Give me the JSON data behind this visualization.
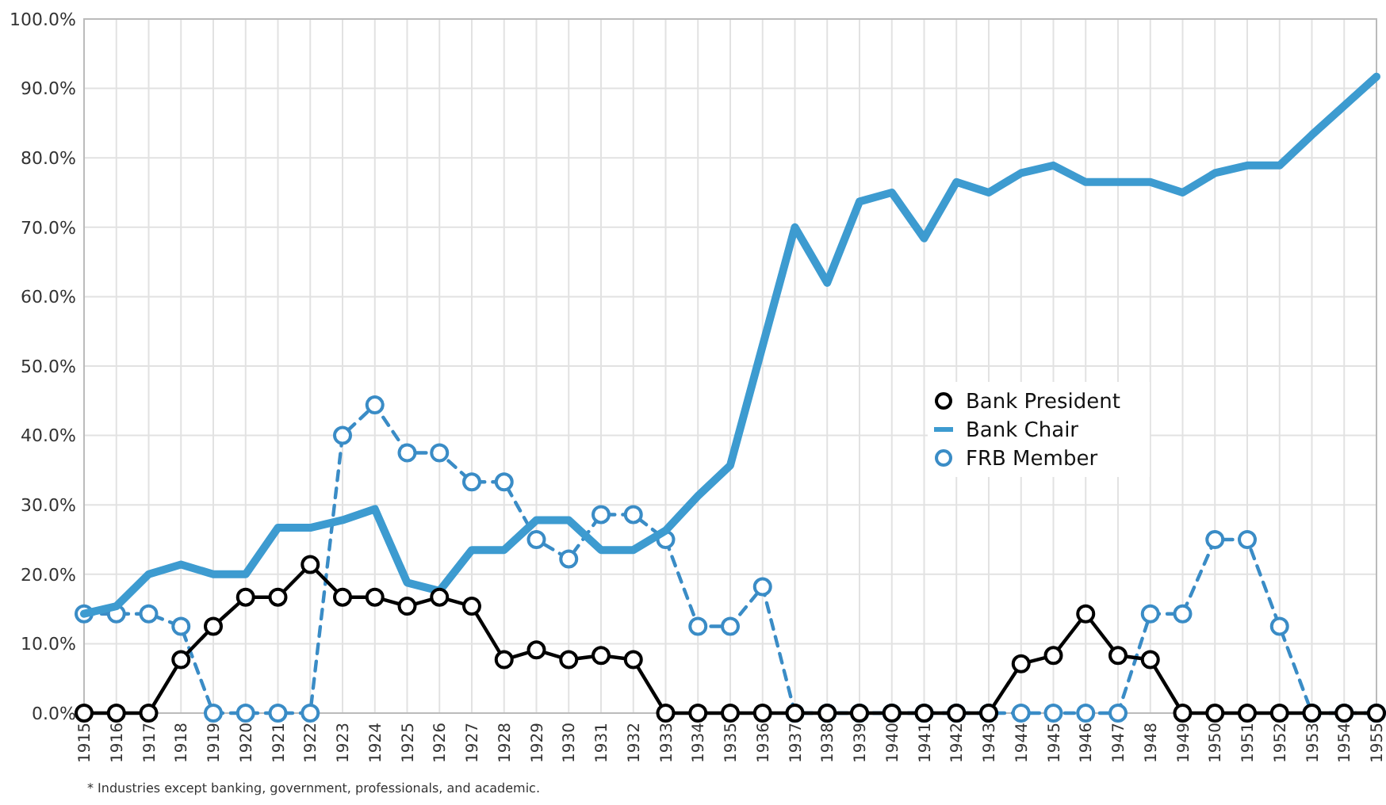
{
  "chart_data": {
    "type": "line",
    "categories": [
      "1915",
      "1916",
      "1917",
      "1918",
      "1919",
      "1920",
      "1921",
      "1922",
      "1923",
      "1924",
      "1925",
      "1926",
      "1927",
      "1928",
      "1929",
      "1930",
      "1931",
      "1932",
      "1933",
      "1934",
      "1935",
      "1936",
      "1937",
      "1938",
      "1939",
      "1940",
      "1941",
      "1942",
      "1943",
      "1944",
      "1945",
      "1946",
      "1947",
      "1948",
      "1949",
      "1950",
      "1951",
      "1952",
      "1953",
      "1954",
      "1955"
    ],
    "series": [
      {
        "name": "Bank President",
        "color": "#000000",
        "marker": "circle",
        "line_style": "solid",
        "values": [
          0,
          0,
          0,
          7.7,
          12.5,
          16.7,
          16.7,
          21.4,
          16.7,
          16.7,
          15.4,
          16.7,
          15.4,
          7.7,
          9.1,
          7.7,
          8.3,
          7.7,
          0,
          0,
          0,
          0,
          0,
          0,
          0,
          0,
          0,
          0,
          0,
          7.1,
          8.3,
          14.3,
          8.3,
          7.7,
          0,
          0,
          0,
          0,
          0,
          0,
          0
        ]
      },
      {
        "name": "Bank Chair",
        "color": "#3d9bd0",
        "marker": "none",
        "line_style": "solid",
        "values": [
          14.3,
          15.4,
          20,
          21.4,
          20,
          20,
          26.7,
          26.7,
          27.8,
          29.4,
          18.8,
          17.6,
          23.5,
          23.5,
          27.8,
          27.8,
          23.5,
          23.5,
          26.3,
          31.3,
          35.7,
          52.9,
          70,
          62,
          73.7,
          75,
          68.4,
          76.5,
          75,
          77.8,
          78.9,
          76.5,
          76.5,
          76.5,
          75,
          77.8,
          78.9,
          78.9,
          83.3,
          87.5,
          91.7
        ]
      },
      {
        "name": "FRB Member",
        "color": "#3a8cc6",
        "marker": "circle",
        "line_style": "dashed",
        "values": [
          14.3,
          14.3,
          14.3,
          12.5,
          0,
          0,
          0,
          0,
          40,
          44.4,
          37.5,
          37.5,
          33.3,
          33.3,
          25,
          22.2,
          28.6,
          28.6,
          25,
          12.5,
          12.5,
          18.2,
          0,
          0,
          0,
          0,
          0,
          0,
          0,
          0,
          0,
          0,
          0,
          14.3,
          14.3,
          25,
          25,
          12.5,
          0,
          0,
          0
        ]
      }
    ],
    "ylim": [
      0,
      100
    ],
    "yticks": [
      {
        "value": 0,
        "label": "0.0%"
      },
      {
        "value": 10,
        "label": "10.0%"
      },
      {
        "value": 20,
        "label": "20.0%"
      },
      {
        "value": 30,
        "label": "30.0%"
      },
      {
        "value": 40,
        "label": "40.0%"
      },
      {
        "value": 50,
        "label": "50.0%"
      },
      {
        "value": 60,
        "label": "60.0%"
      },
      {
        "value": 70,
        "label": "70.0%"
      },
      {
        "value": 80,
        "label": "80.0%"
      },
      {
        "value": 90,
        "label": "90.0%"
      },
      {
        "value": 100,
        "label": "100.0%"
      }
    ],
    "grid": true,
    "legend": "right",
    "annotations": [
      "* Industries except banking, government, professionals, and academic."
    ]
  }
}
